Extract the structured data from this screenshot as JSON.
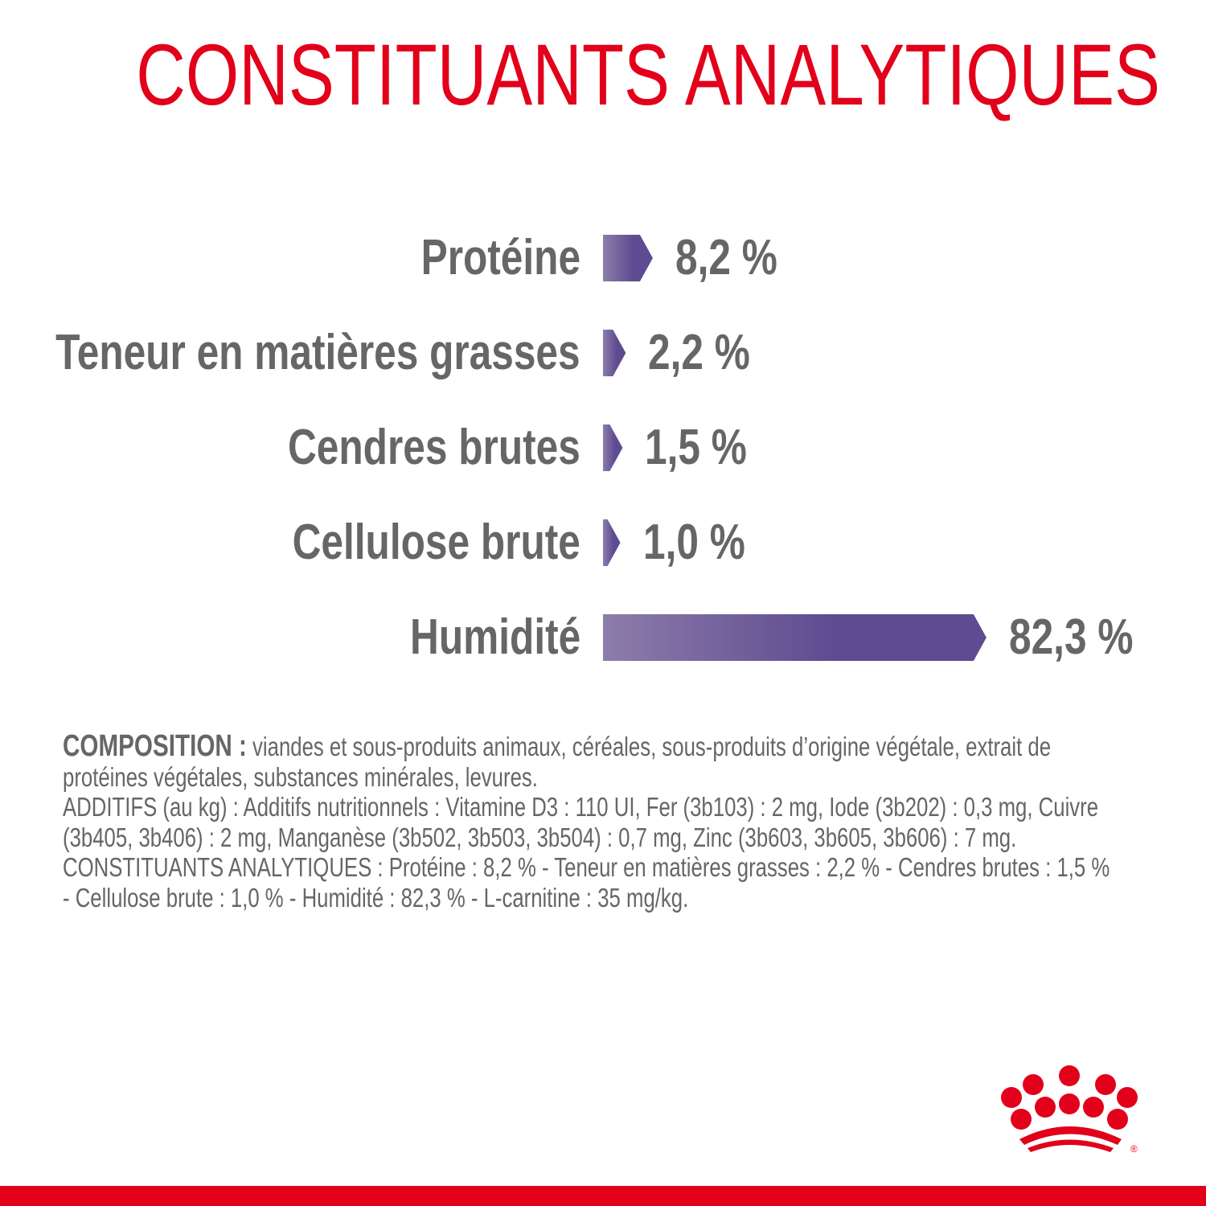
{
  "title": "CONSTITUANTS ANALYTIQUES",
  "chart_data": {
    "type": "bar",
    "orientation": "horizontal",
    "title": "CONSTITUANTS ANALYTIQUES",
    "categories": [
      "Protéine",
      "Teneur en matières grasses",
      "Cendres brutes",
      "Cellulose brute",
      "Humidité"
    ],
    "values": [
      8.2,
      2.2,
      1.5,
      1.0,
      82.3
    ],
    "value_labels": [
      "8,2 %",
      "2,2 %",
      "1,5 %",
      "1,0 %",
      "82,3 %"
    ],
    "unit": "%",
    "grid": false,
    "bar_gradient": [
      "#8d7daa",
      "#5f4b91"
    ]
  },
  "composition": {
    "heading": "COMPOSITION :",
    "lines": [
      " viandes et sous-produits animaux, céréales, sous-produits d’origine végétale, extrait de",
      "protéines végétales, substances minérales, levures.",
      "ADDITIFS (au kg) : Additifs nutritionnels : Vitamine D3 : 110 UI, Fer (3b103) : 2 mg, Iode (3b202) : 0,3 mg, Cuivre",
      "(3b405, 3b406) : 2 mg, Manganèse (3b502, 3b503, 3b504) : 0,7 mg, Zinc (3b603, 3b605, 3b606) : 7 mg.",
      "CONSTITUANTS ANALYTIQUES : Protéine : 8,2 % - Teneur en matières grasses : 2,2 % - Cendres brutes : 1,5 %",
      "- Cellulose brute : 1,0 % - Humidité : 82,3 % - L-carnitine : 35 mg/kg."
    ]
  },
  "logo": {
    "name": "crown-logo",
    "registered": "®",
    "color": "#e2001a"
  },
  "colors": {
    "accent": "#e2001a",
    "text": "#666666"
  }
}
